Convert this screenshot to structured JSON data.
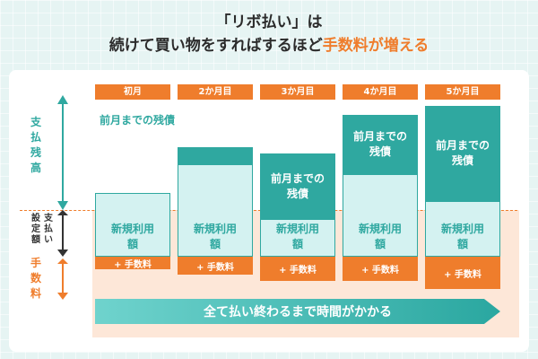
{
  "title": {
    "line1": "「リボ払い」は",
    "line2_prefix": "続けて買い物をすればするほど",
    "line2_highlight": "手数料が増える"
  },
  "axis": {
    "balance": "支払残高",
    "limit_col1": "支払い",
    "limit_col2": "設定額",
    "fee": "手数料"
  },
  "months": [
    "初月",
    "2か月目",
    "3か月目",
    "4か月目",
    "5か月目"
  ],
  "prev_balance_label": "前月までの残債",
  "new_usage_label": "新規利用額",
  "fee_label": "+ 手数料",
  "banner": "全て払い終わるまで時間がかかる",
  "colors": {
    "teal": "#2fa8a0",
    "orange": "#ef7d2c",
    "peach": "#fde7d8",
    "light_teal": "#d4f2f1"
  }
}
